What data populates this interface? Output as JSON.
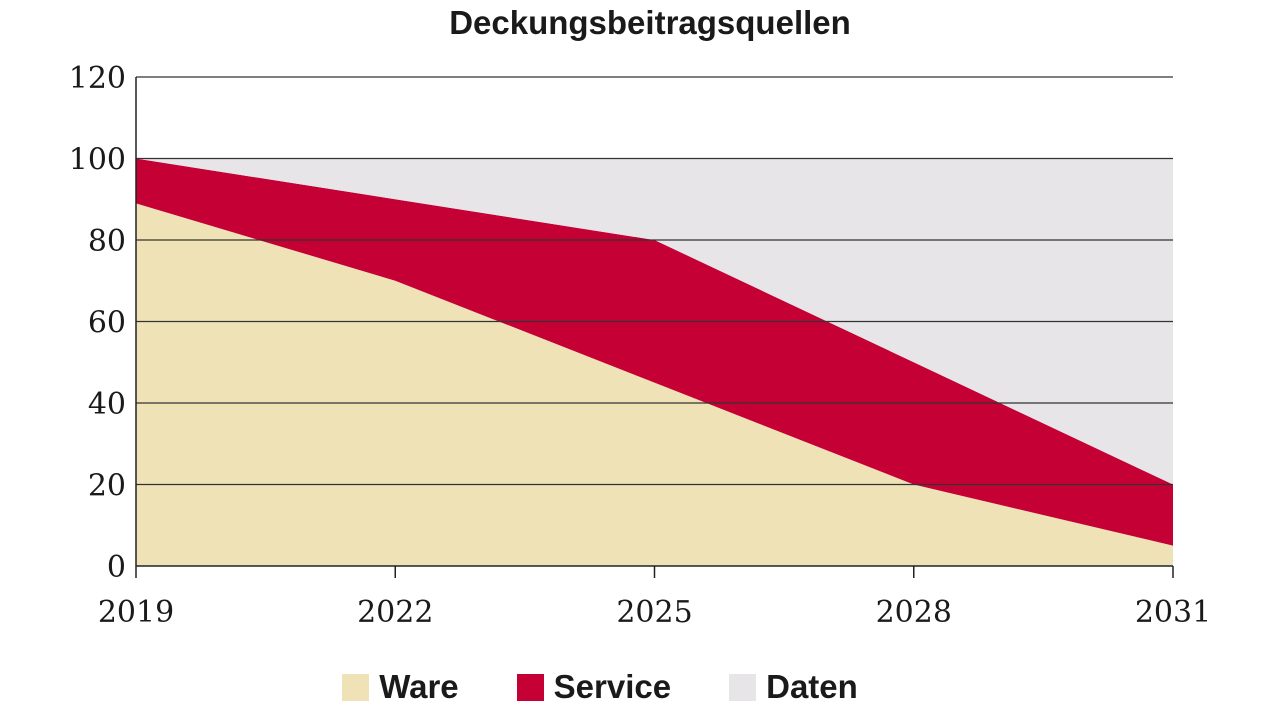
{
  "chart_data": {
    "type": "area",
    "stacked": true,
    "title": "Deckungsbeitragsquellen",
    "xlabel": "",
    "ylabel": "",
    "x": [
      2019,
      2022,
      2025,
      2028,
      2031
    ],
    "x_tick_labels": [
      "2019",
      "2022",
      "2025",
      "2028",
      "2031"
    ],
    "y_ticks": [
      0,
      20,
      40,
      60,
      80,
      100,
      120
    ],
    "y_tick_labels": [
      "0",
      "20",
      "40",
      "60",
      "80",
      "100",
      "120"
    ],
    "ylim": [
      0,
      120
    ],
    "grid": true,
    "series": [
      {
        "name": "Ware",
        "color": "#efe2b6",
        "values": [
          89,
          70,
          45,
          20,
          5
        ]
      },
      {
        "name": "Service",
        "color": "#c40034",
        "values": [
          11,
          20,
          35,
          30,
          15
        ]
      },
      {
        "name": "Daten",
        "color": "#e7e5e8",
        "values": [
          0,
          10,
          20,
          50,
          80
        ]
      }
    ],
    "legend_position": "bottom"
  }
}
